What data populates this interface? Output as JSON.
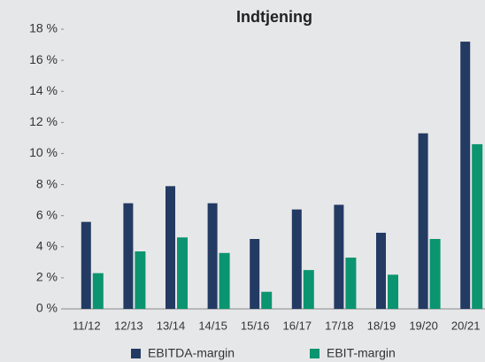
{
  "chart_data": {
    "type": "bar",
    "title": "Indtjening",
    "categories": [
      "11/12",
      "12/13",
      "13/14",
      "14/15",
      "15/16",
      "16/17",
      "17/18",
      "18/19",
      "19/20",
      "20/21"
    ],
    "series": [
      {
        "name": "EBITDA-margin",
        "color": "#233a63",
        "values": [
          5.6,
          6.8,
          7.9,
          6.8,
          4.5,
          6.4,
          6.7,
          4.9,
          11.3,
          17.2
        ]
      },
      {
        "name": "EBIT-margin",
        "color": "#0b9470",
        "values": [
          2.3,
          3.7,
          4.6,
          3.6,
          1.1,
          2.5,
          3.3,
          2.2,
          4.5,
          10.6
        ]
      }
    ],
    "ylim": [
      0,
      18
    ],
    "yticks": [
      {
        "value": 0,
        "label": "0 %"
      },
      {
        "value": 2,
        "label": "2 %"
      },
      {
        "value": 4,
        "label": "4 %"
      },
      {
        "value": 6,
        "label": "6 %"
      },
      {
        "value": 8,
        "label": "8 %"
      },
      {
        "value": 10,
        "label": "10 %"
      },
      {
        "value": 12,
        "label": "12 %"
      },
      {
        "value": 14,
        "label": "14 %"
      },
      {
        "value": 16,
        "label": "16 %"
      },
      {
        "value": 18,
        "label": "18 %"
      }
    ],
    "legend": "bottom"
  }
}
